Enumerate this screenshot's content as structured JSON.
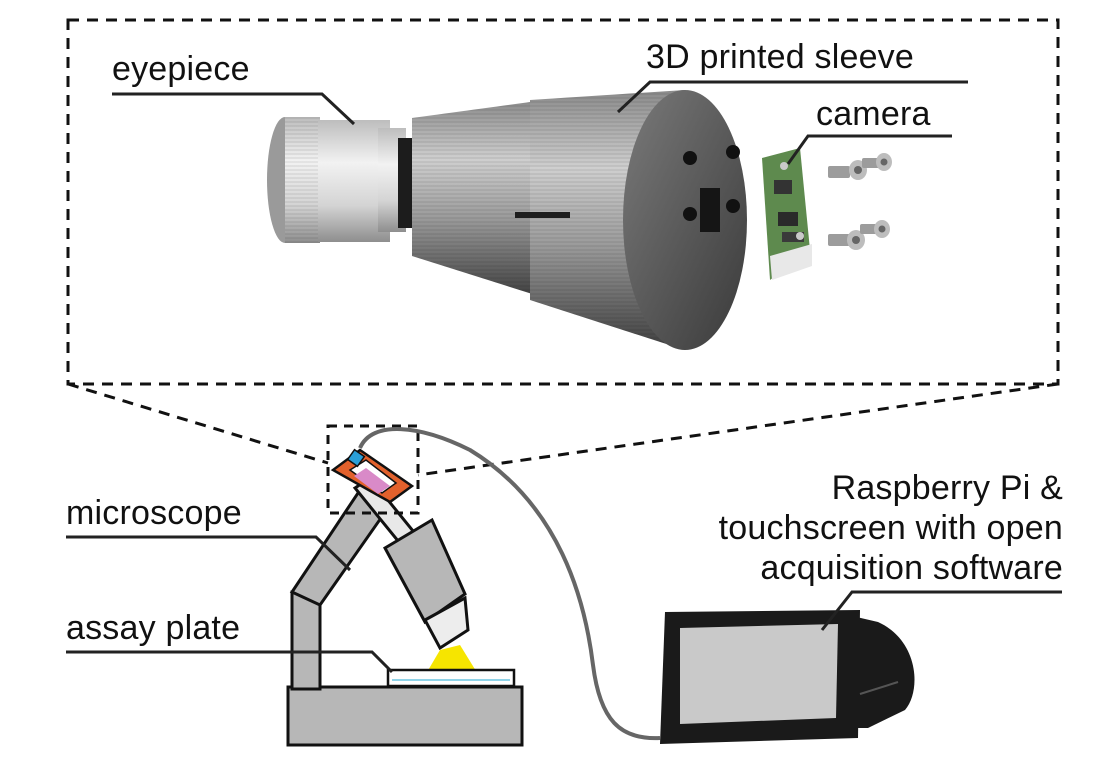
{
  "labels": {
    "eyepiece": "eyepiece",
    "sleeve": "3D printed sleeve",
    "camera": "camera",
    "microscope": "microscope",
    "assay_plate": "assay plate",
    "pi_line1": "Raspberry Pi &",
    "pi_line2": "touchscreen with open",
    "pi_line3": "acquisition software"
  },
  "colors": {
    "outline": "#111111",
    "leader": "#222222",
    "microscope_body": "#b7b7b7",
    "light_cone": "#f6e500",
    "sleeve_dark": "#5a5a5a",
    "sleeve_light": "#d0d0d0",
    "eyepiece_silver": "#e6e6e6",
    "pcb_green": "#5e8a4e",
    "adapter_orange": "#e2612c",
    "adapter_blue": "#2a9fd8",
    "adapter_pink": "#d98ac8",
    "screen_grey": "#c9c9c9",
    "device_black": "#1a1a1a",
    "cable": "#666666"
  }
}
